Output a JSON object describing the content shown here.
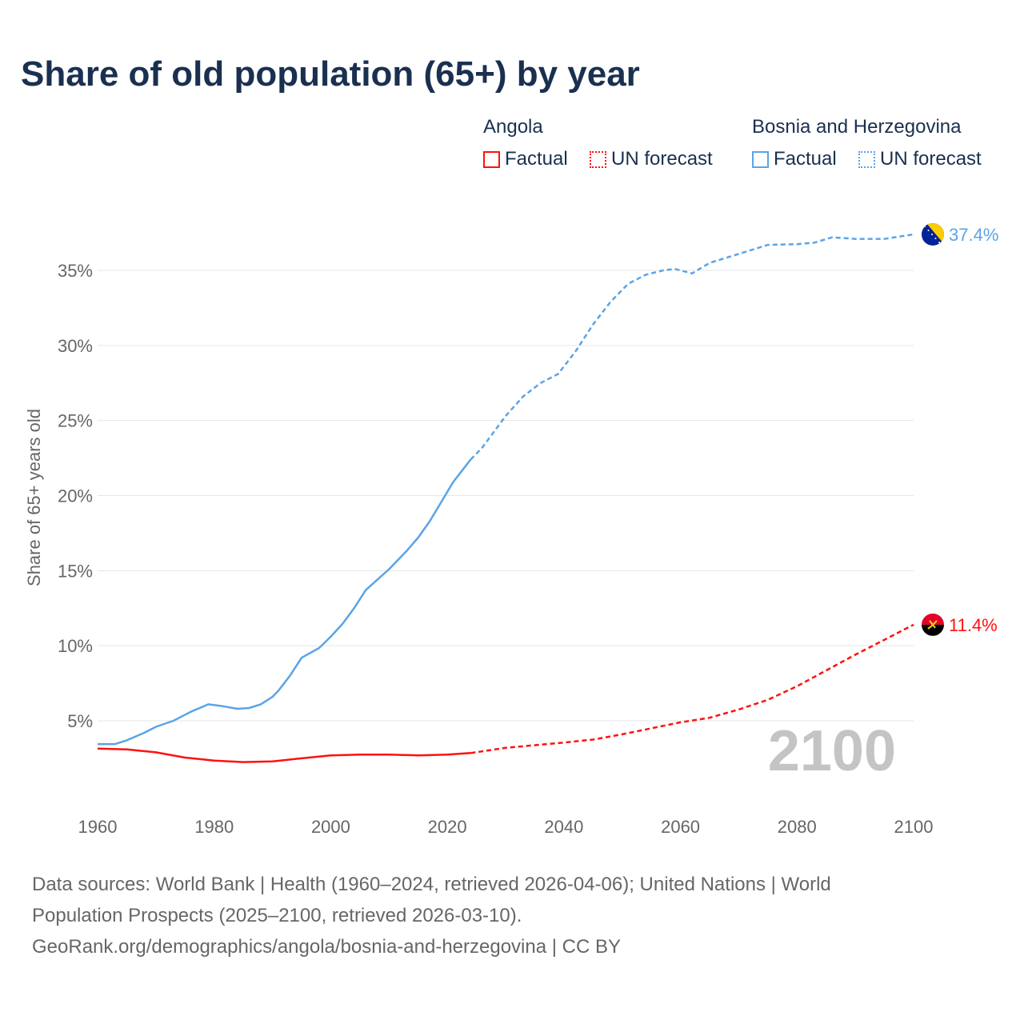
{
  "chart_data": {
    "type": "line",
    "title": "Share of old population (65+) by year",
    "ylabel": "Share of 65+ years old",
    "xlabel": "",
    "xlim": [
      1960,
      2100
    ],
    "ylim": [
      0,
      37.5
    ],
    "x_ticks": [
      "1960",
      "1980",
      "2000",
      "2020",
      "2040",
      "2060",
      "2080",
      "2100"
    ],
    "y_ticks": [
      {
        "v": 5,
        "label": "5%"
      },
      {
        "v": 10,
        "label": "10%"
      },
      {
        "v": 15,
        "label": "15%"
      },
      {
        "v": 20,
        "label": "20%"
      },
      {
        "v": 25,
        "label": "25%"
      },
      {
        "v": 30,
        "label": "30%"
      },
      {
        "v": 35,
        "label": "35%"
      }
    ],
    "grid": true,
    "year_watermark": "2100",
    "forecast_start": 2024,
    "series": [
      {
        "name": "Bosnia and Herzegovina",
        "color": "#5ba4e6",
        "end_label": "37.4%",
        "flag": "bosnia-flag",
        "points": [
          [
            1960,
            3.45
          ],
          [
            1963,
            3.45
          ],
          [
            1965,
            3.7
          ],
          [
            1968,
            4.2
          ],
          [
            1970,
            4.6
          ],
          [
            1973,
            5.0
          ],
          [
            1976,
            5.6
          ],
          [
            1979,
            6.1
          ],
          [
            1981,
            6.0
          ],
          [
            1984,
            5.8
          ],
          [
            1986,
            5.85
          ],
          [
            1988,
            6.1
          ],
          [
            1990,
            6.6
          ],
          [
            1991,
            7.0
          ],
          [
            1993,
            8.0
          ],
          [
            1995,
            9.2
          ],
          [
            1998,
            9.85
          ],
          [
            2000,
            10.6
          ],
          [
            2002,
            11.45
          ],
          [
            2004,
            12.5
          ],
          [
            2006,
            13.7
          ],
          [
            2008,
            14.4
          ],
          [
            2010,
            15.1
          ],
          [
            2013,
            16.3
          ],
          [
            2015,
            17.2
          ],
          [
            2017,
            18.3
          ],
          [
            2019,
            19.6
          ],
          [
            2021,
            20.9
          ],
          [
            2023,
            21.9
          ],
          [
            2024,
            22.4
          ],
          [
            2026,
            23.2
          ],
          [
            2030,
            25.3
          ],
          [
            2033,
            26.6
          ],
          [
            2036,
            27.5
          ],
          [
            2039,
            28.1
          ],
          [
            2042,
            29.6
          ],
          [
            2045,
            31.4
          ],
          [
            2048,
            32.9
          ],
          [
            2051,
            34.1
          ],
          [
            2054,
            34.7
          ],
          [
            2057,
            35.0
          ],
          [
            2059,
            35.1
          ],
          [
            2062,
            34.8
          ],
          [
            2065,
            35.5
          ],
          [
            2070,
            36.1
          ],
          [
            2075,
            36.7
          ],
          [
            2080,
            36.75
          ],
          [
            2083,
            36.85
          ],
          [
            2086,
            37.2
          ],
          [
            2090,
            37.1
          ],
          [
            2095,
            37.1
          ],
          [
            2100,
            37.4
          ]
        ]
      },
      {
        "name": "Angola",
        "color": "#ff1010",
        "end_label": "11.4%",
        "flag": "angola-flag",
        "points": [
          [
            1960,
            3.15
          ],
          [
            1965,
            3.1
          ],
          [
            1970,
            2.9
          ],
          [
            1975,
            2.55
          ],
          [
            1980,
            2.35
          ],
          [
            1985,
            2.25
          ],
          [
            1990,
            2.3
          ],
          [
            1995,
            2.5
          ],
          [
            2000,
            2.7
          ],
          [
            2005,
            2.75
          ],
          [
            2010,
            2.75
          ],
          [
            2015,
            2.7
          ],
          [
            2020,
            2.75
          ],
          [
            2024,
            2.85
          ],
          [
            2030,
            3.2
          ],
          [
            2040,
            3.55
          ],
          [
            2045,
            3.75
          ],
          [
            2050,
            4.1
          ],
          [
            2055,
            4.5
          ],
          [
            2060,
            4.9
          ],
          [
            2065,
            5.2
          ],
          [
            2070,
            5.75
          ],
          [
            2075,
            6.4
          ],
          [
            2080,
            7.3
          ],
          [
            2085,
            8.35
          ],
          [
            2090,
            9.4
          ],
          [
            2095,
            10.4
          ],
          [
            2098,
            11.0
          ],
          [
            2100,
            11.4
          ]
        ]
      }
    ]
  },
  "legend": {
    "angola": {
      "title": "Angola",
      "factual": "Factual",
      "forecast": "UN forecast",
      "color": "#ff1010"
    },
    "bosnia": {
      "title": "Bosnia and Herzegovina",
      "factual": "Factual",
      "forecast": "UN forecast",
      "color": "#5ba4e6"
    }
  },
  "source": {
    "line1": "Data sources: World Bank | Health (1960–2024, retrieved 2026-04-06); United Nations | World",
    "line2": "Population Prospects (2025–2100, retrieved 2026-03-10).",
    "line3": "GeoRank.org/demographics/angola/bosnia-and-herzegovina | CC BY"
  }
}
